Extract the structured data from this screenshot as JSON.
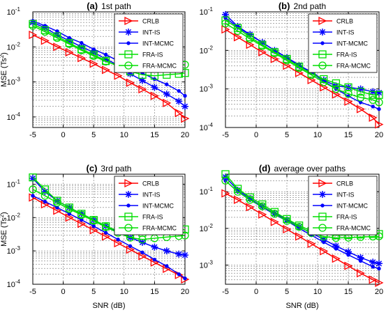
{
  "figure": {
    "ylabel_prefix": "MSE (Ts",
    "ylabel_exp": "2",
    "ylabel_suffix": ")",
    "xlabel": "SNR (dB)"
  },
  "series_styles": [
    {
      "name": "CRLB",
      "color": "#ff0000",
      "marker": "triangle-right"
    },
    {
      "name": "INT-IS",
      "color": "#0000ff",
      "marker": "star"
    },
    {
      "name": "INT-MCMC",
      "color": "#0000ff",
      "marker": "dot"
    },
    {
      "name": "FRA-IS",
      "color": "#00dd00",
      "marker": "square"
    },
    {
      "name": "FRA-MCMC",
      "color": "#00dd00",
      "marker": "circle"
    }
  ],
  "chart_data": [
    {
      "type": "line",
      "title_bold": "(a)",
      "title_text": "1st path",
      "xlabel": "",
      "ylabel": "MSE (Ts^2)",
      "yscale": "log",
      "xlim": [
        -5,
        20
      ],
      "ylim": [
        5e-05,
        0.1
      ],
      "xticks": [
        -5,
        0,
        5,
        10,
        15,
        20
      ],
      "yticks": [
        0.0001,
        0.001,
        0.01,
        0.1
      ],
      "ytick_exps": [
        "-4",
        "-3",
        "-2",
        "-1"
      ],
      "grid": true,
      "legend": "top-right",
      "x": [
        -5,
        -3,
        -1,
        1,
        3,
        5,
        7,
        9,
        11,
        13,
        15,
        17,
        19,
        20
      ],
      "series": [
        {
          "name": "CRLB",
          "values": [
            0.022,
            0.015,
            0.01,
            0.007,
            0.0048,
            0.0033,
            0.0022,
            0.0015,
            0.00095,
            0.00062,
            0.0004,
            0.00025,
            0.00013,
            9e-05
          ]
        },
        {
          "name": "INT-IS",
          "values": [
            0.05,
            0.035,
            0.022,
            0.015,
            0.01,
            0.007,
            0.0045,
            0.003,
            0.0017,
            0.0011,
            0.0007,
            0.00045,
            0.00028,
            0.0002
          ]
        },
        {
          "name": "INT-MCMC",
          "values": [
            0.055,
            0.04,
            0.028,
            0.018,
            0.013,
            0.0085,
            0.006,
            0.004,
            0.0027,
            0.0018,
            0.0012,
            0.00085,
            0.00055,
            0.0004
          ]
        },
        {
          "name": "FRA-IS",
          "values": [
            0.045,
            0.03,
            0.02,
            0.013,
            0.0085,
            0.006,
            0.004,
            0.0028,
            0.002,
            0.0016,
            0.0015,
            0.0016,
            0.0017,
            0.0018
          ]
        },
        {
          "name": "FRA-MCMC",
          "values": [
            0.04,
            0.027,
            0.018,
            0.012,
            0.008,
            0.0055,
            0.0038,
            0.003,
            0.0026,
            0.0028,
            0.0029,
            0.003,
            0.003,
            0.0031
          ]
        }
      ]
    },
    {
      "type": "line",
      "title_bold": "(b)",
      "title_text": "2nd path",
      "xlabel": "",
      "ylabel": "",
      "yscale": "log",
      "xlim": [
        -5,
        20
      ],
      "ylim": [
        0.0001,
        0.1
      ],
      "xticks": [
        -5,
        0,
        5,
        10,
        15,
        20
      ],
      "yticks": [
        0.0001,
        0.001,
        0.01,
        0.1
      ],
      "ytick_exps": [
        "-4",
        "-3",
        "-2",
        "-1"
      ],
      "grid": true,
      "legend": "top-right",
      "x": [
        -5,
        -3,
        -1,
        1,
        3,
        5,
        7,
        9,
        11,
        13,
        15,
        17,
        19,
        20
      ],
      "series": [
        {
          "name": "CRLB",
          "values": [
            0.035,
            0.022,
            0.014,
            0.009,
            0.006,
            0.004,
            0.0026,
            0.0017,
            0.0011,
            0.00072,
            0.00047,
            0.0003,
            0.00018,
            0.00012
          ]
        },
        {
          "name": "INT-IS",
          "values": [
            0.085,
            0.042,
            0.026,
            0.016,
            0.01,
            0.0065,
            0.004,
            0.0028,
            0.0017,
            0.0012,
            0.0011,
            0.001,
            0.00085,
            0.0008
          ]
        },
        {
          "name": "INT-MCMC",
          "values": [
            0.07,
            0.04,
            0.025,
            0.016,
            0.01,
            0.0065,
            0.0042,
            0.0026,
            0.0016,
            0.001,
            0.00065,
            0.00045,
            0.00035,
            0.0003
          ]
        },
        {
          "name": "FRA-IS",
          "values": [
            0.06,
            0.038,
            0.022,
            0.014,
            0.009,
            0.006,
            0.0038,
            0.0025,
            0.0018,
            0.0014,
            0.0011,
            0.00085,
            0.0007,
            0.0007
          ]
        },
        {
          "name": "FRA-MCMC",
          "values": [
            0.05,
            0.032,
            0.02,
            0.013,
            0.0085,
            0.0055,
            0.0035,
            0.0023,
            0.0015,
            0.001,
            0.00075,
            0.0006,
            0.00052,
            0.00045
          ]
        }
      ]
    },
    {
      "type": "line",
      "title_bold": "(c)",
      "title_text": "3rd path",
      "xlabel": "SNR (dB)",
      "ylabel": "MSE (Ts^2)",
      "yscale": "log",
      "xlim": [
        -5,
        20
      ],
      "ylim": [
        0.0001,
        0.2
      ],
      "xticks": [
        -5,
        0,
        5,
        10,
        15,
        20
      ],
      "yticks": [
        0.0001,
        0.001,
        0.01,
        0.1
      ],
      "ytick_exps": [
        "-4",
        "-3",
        "-2",
        "-1"
      ],
      "grid": true,
      "legend": "top-right",
      "x": [
        -5,
        -3,
        -1,
        1,
        3,
        5,
        7,
        9,
        11,
        13,
        15,
        17,
        19,
        20
      ],
      "series": [
        {
          "name": "CRLB",
          "values": [
            0.04,
            0.025,
            0.016,
            0.01,
            0.0065,
            0.0042,
            0.0027,
            0.0017,
            0.0011,
            0.0007,
            0.00045,
            0.00029,
            0.00019,
            0.00014
          ]
        },
        {
          "name": "INT-IS",
          "values": [
            0.15,
            0.06,
            0.032,
            0.02,
            0.013,
            0.0085,
            0.0055,
            0.0037,
            0.0025,
            0.0018,
            0.0013,
            0.001,
            0.0008,
            0.00075
          ]
        },
        {
          "name": "INT-MCMC",
          "values": [
            0.045,
            0.03,
            0.02,
            0.013,
            0.0085,
            0.0055,
            0.0035,
            0.0022,
            0.0014,
            0.0009,
            0.00055,
            0.00035,
            0.0002,
            0.00015
          ]
        },
        {
          "name": "FRA-IS",
          "values": [
            0.16,
            0.07,
            0.032,
            0.02,
            0.013,
            0.0085,
            0.0055,
            0.004,
            0.0033,
            0.0035,
            0.004,
            0.0042,
            0.0043,
            0.0044
          ]
        },
        {
          "name": "FRA-MCMC",
          "values": [
            0.07,
            0.045,
            0.028,
            0.018,
            0.012,
            0.008,
            0.0052,
            0.0035,
            0.0025,
            0.0022,
            0.0024,
            0.0026,
            0.0028,
            0.0029
          ]
        }
      ]
    },
    {
      "type": "line",
      "title_bold": "(d)",
      "title_text": "average over paths",
      "xlabel": "SNR (dB)",
      "ylabel": "",
      "yscale": "log",
      "xlim": [
        -5,
        20
      ],
      "ylim": [
        0.0003,
        0.3
      ],
      "xticks": [
        -5,
        0,
        5,
        10,
        15,
        20
      ],
      "yticks": [
        0.001,
        0.01,
        0.1
      ],
      "ytick_exps": [
        "-3",
        "-2",
        "-1"
      ],
      "grid": true,
      "legend": "top-right",
      "x": [
        -5,
        -3,
        -1,
        1,
        3,
        5,
        7,
        9,
        11,
        13,
        15,
        17,
        19,
        20
      ],
      "series": [
        {
          "name": "CRLB",
          "values": [
            0.09,
            0.06,
            0.038,
            0.024,
            0.015,
            0.0095,
            0.006,
            0.0038,
            0.0024,
            0.0015,
            0.00095,
            0.0006,
            0.0004,
            0.00033
          ]
        },
        {
          "name": "INT-IS",
          "values": [
            0.25,
            0.11,
            0.065,
            0.04,
            0.026,
            0.017,
            0.011,
            0.0075,
            0.005,
            0.0033,
            0.0023,
            0.0016,
            0.0012,
            0.0011
          ]
        },
        {
          "name": "INT-MCMC",
          "values": [
            0.2,
            0.1,
            0.06,
            0.038,
            0.024,
            0.016,
            0.01,
            0.0065,
            0.0042,
            0.0028,
            0.0019,
            0.0013,
            0.0009,
            0.0008
          ]
        },
        {
          "name": "FRA-IS",
          "values": [
            0.3,
            0.12,
            0.07,
            0.045,
            0.028,
            0.018,
            0.012,
            0.0085,
            0.007,
            0.0065,
            0.0066,
            0.0068,
            0.007,
            0.007
          ]
        },
        {
          "name": "FRA-MCMC",
          "values": [
            0.2,
            0.1,
            0.06,
            0.04,
            0.025,
            0.016,
            0.011,
            0.0075,
            0.006,
            0.0055,
            0.0056,
            0.0058,
            0.006,
            0.0061
          ]
        }
      ]
    }
  ]
}
